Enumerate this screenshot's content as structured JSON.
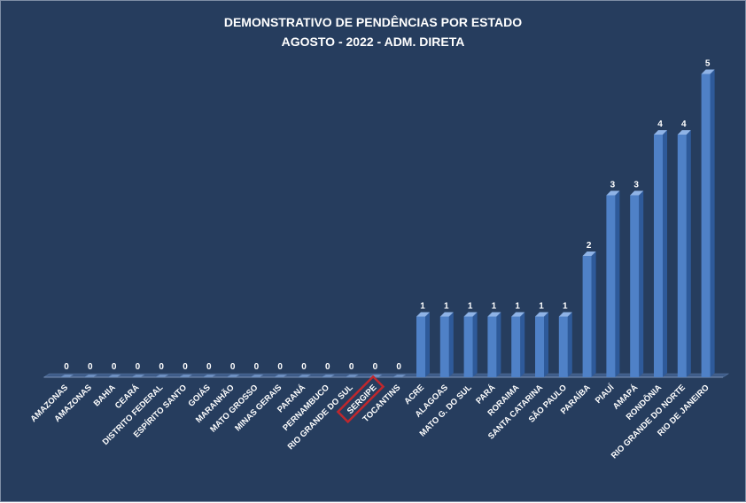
{
  "chart_data": {
    "type": "bar",
    "title": "DEMONSTRATIVO DE PENDÊNCIAS POR ESTADO",
    "subtitle": "AGOSTO - 2022 - ADM. DIRETA",
    "categories": [
      "AMAZONAS",
      "AMAZONAS",
      "BAHIA",
      "CEARÁ",
      "DISTRITO FEDERAL",
      "ESPÍRITO SANTO",
      "GOIÁS",
      "MARANHÃO",
      "MATO GROSSO",
      "MINAS GERAIS",
      "PARANÁ",
      "PERNAMBUCO",
      "RIO GRANDE DO SUL",
      "SERGIPE",
      "TOCANTINS",
      "ACRE",
      "ALAGOAS",
      "MATO G. DO SUL",
      "PARÁ",
      "RORAIMA",
      "SANTA CATARINA",
      "SÃO PAULO",
      "PARAÍBA",
      "PIAUÍ",
      "AMAPÁ",
      "RONDÔNIA",
      "RIO GRANDE DO NORTE",
      "RIO DE JANEIRO"
    ],
    "values": [
      0,
      0,
      0,
      0,
      0,
      0,
      0,
      0,
      0,
      0,
      0,
      0,
      0,
      0,
      0,
      1,
      1,
      1,
      1,
      1,
      1,
      1,
      2,
      3,
      3,
      4,
      4,
      5
    ],
    "ylim": [
      0,
      5
    ],
    "grid": false,
    "legend": "none",
    "highlighted_category": "SERGIPE",
    "colors": {
      "background": "#263d5e",
      "bar_front": "#4f81c7",
      "bar_side": "#2e5a9a",
      "bar_top": "#8fb3e6",
      "highlight_box": "#c0282d",
      "text": "#ffffff"
    }
  }
}
